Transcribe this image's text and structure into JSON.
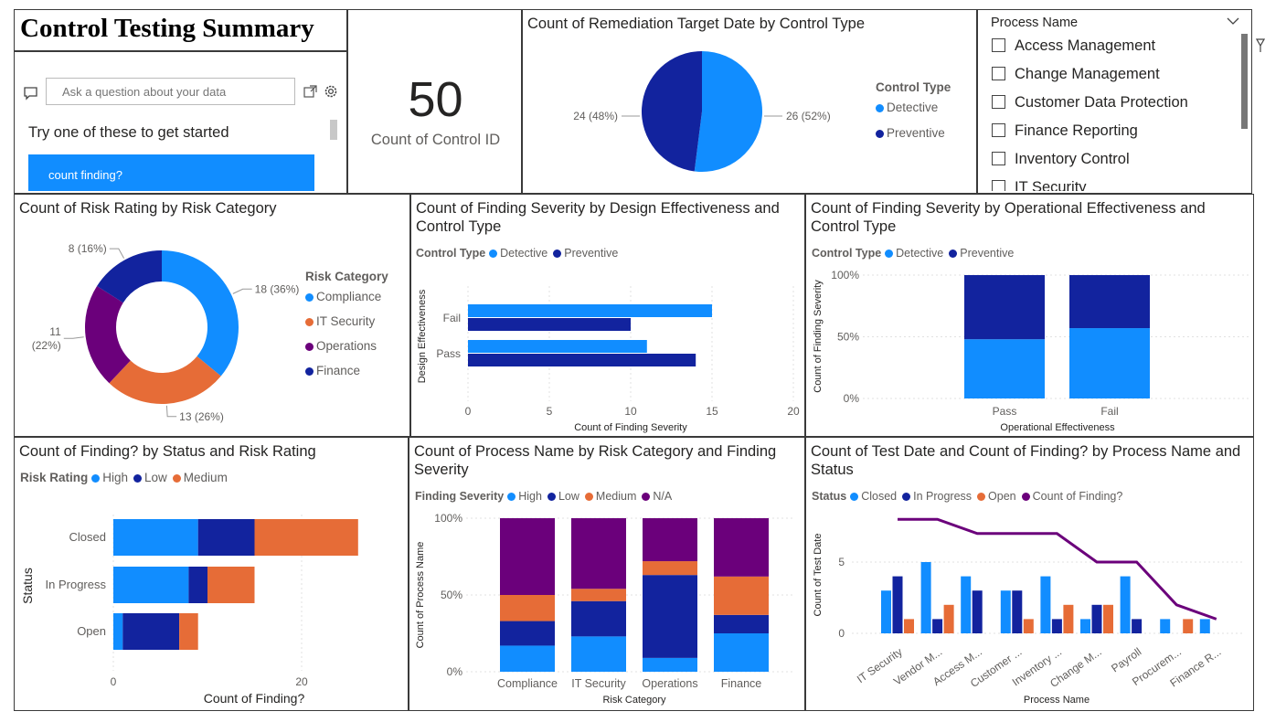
{
  "header": {
    "title": "Control Testing Summary"
  },
  "qa": {
    "placeholder": "Ask a question about your data",
    "hint": "Try one of these to get started",
    "suggestion": "count finding?"
  },
  "card": {
    "value": "50",
    "label": "Count of Control ID"
  },
  "slicer": {
    "title": "Process Name",
    "items": [
      "Access Management",
      "Change Management",
      "Customer Data Protection",
      "Finance Reporting",
      "Inventory Control",
      "IT Security"
    ]
  },
  "colors": {
    "detective": "#118DFF",
    "preventive": "#12239E",
    "orange": "#E66C37",
    "purple": "#6B007B",
    "high": "#118DFF",
    "low": "#12239E",
    "medium": "#E66C37",
    "na": "#6B007B"
  },
  "chart_data": [
    {
      "id": "remediation_pie",
      "type": "pie",
      "title": "Count of Remediation Target Date by Control Type",
      "legend_title": "Control Type",
      "categories": [
        "Detective",
        "Preventive"
      ],
      "values": [
        26,
        24
      ],
      "labels": [
        "26 (52%)",
        "24 (48%)"
      ]
    },
    {
      "id": "risk_donut",
      "type": "pie",
      "title": "Count of Risk Rating by Risk Category",
      "legend_title": "Risk Category",
      "categories": [
        "Compliance",
        "IT Security",
        "Operations",
        "Finance"
      ],
      "values": [
        18,
        13,
        11,
        8
      ],
      "labels": [
        "18 (36%)",
        "13 (26%)",
        "11 (22%)",
        "8 (16%)"
      ]
    },
    {
      "id": "design_bar",
      "type": "bar",
      "title": "Count of Finding Severity by Design Effectiveness and Control Type",
      "legend_title": "Control Type",
      "categories": [
        "Fail",
        "Pass"
      ],
      "series": [
        {
          "name": "Detective",
          "values": [
            15,
            11
          ]
        },
        {
          "name": "Preventive",
          "values": [
            10,
            14
          ]
        }
      ],
      "xlabel": "Count of Finding Severity",
      "ylabel": "Design Effectiveness",
      "xlim": [
        0,
        20
      ],
      "xticks": [
        "0",
        "5",
        "10",
        "15",
        "20"
      ]
    },
    {
      "id": "operational_bar",
      "type": "bar",
      "title": "Count of Finding Severity by Operational Effectiveness and Control Type",
      "legend_title": "Control Type",
      "categories": [
        "Pass",
        "Fail"
      ],
      "series": [
        {
          "name": "Detective",
          "values": [
            0.48,
            0.57
          ]
        },
        {
          "name": "Preventive",
          "values": [
            0.52,
            0.43
          ]
        }
      ],
      "xlabel": "Operational Effectiveness",
      "ylabel": "Count of Finding Severity",
      "yticks": [
        "100%",
        "50%",
        "0%"
      ]
    },
    {
      "id": "status_bar",
      "type": "bar",
      "title": "Count of Finding? by Status and Risk Rating",
      "legend_title": "Risk Rating",
      "categories": [
        "Closed",
        "In Progress",
        "Open"
      ],
      "series": [
        {
          "name": "High",
          "values": [
            9,
            8,
            1
          ]
        },
        {
          "name": "Low",
          "values": [
            6,
            2,
            6
          ]
        },
        {
          "name": "Medium",
          "values": [
            11,
            5,
            2
          ]
        }
      ],
      "xlabel": "Count of Finding?",
      "ylabel": "Status",
      "xticks": [
        "0",
        "20"
      ]
    },
    {
      "id": "process_bar",
      "type": "bar",
      "title": "Count of Process Name by Risk Category and Finding Severity",
      "legend_title": "Finding Severity",
      "categories": [
        "Compliance",
        "IT Security",
        "Operations",
        "Finance"
      ],
      "series": [
        {
          "name": "High",
          "values": [
            0.17,
            0.23,
            0.09,
            0.25
          ]
        },
        {
          "name": "Low",
          "values": [
            0.16,
            0.23,
            0.54,
            0.12
          ]
        },
        {
          "name": "Medium",
          "values": [
            0.17,
            0.08,
            0.09,
            0.25
          ]
        },
        {
          "name": "N/A",
          "values": [
            0.5,
            0.46,
            0.28,
            0.38
          ]
        }
      ],
      "xlabel": "Risk Category",
      "ylabel": "Count of Process Name",
      "yticks": [
        "100%",
        "50%",
        "0%"
      ]
    },
    {
      "id": "testdate_combo",
      "type": "bar",
      "title": "Count of Test Date and Count of Finding? by Process Name and Status",
      "legend_title": "Status",
      "categories": [
        "IT Security",
        "Vendor M...",
        "Access M...",
        "Customer ...",
        "Inventory ...",
        "Change M...",
        "Payroll",
        "Procurem...",
        "Finance R..."
      ],
      "series": [
        {
          "name": "Closed",
          "values": [
            3,
            5,
            4,
            3,
            4,
            1,
            4,
            1,
            1
          ]
        },
        {
          "name": "In Progress",
          "values": [
            4,
            1,
            3,
            3,
            1,
            2,
            1,
            0,
            0
          ]
        },
        {
          "name": "Open",
          "values": [
            1,
            2,
            0,
            1,
            2,
            2,
            0,
            1,
            0
          ]
        },
        {
          "name": "Count of Finding?",
          "values": [
            8,
            8,
            7,
            7,
            7,
            5,
            5,
            2,
            1
          ]
        }
      ],
      "xlabel": "Process Name",
      "ylabel": "Count of Test Date",
      "yticks": [
        "5",
        "0"
      ]
    }
  ]
}
